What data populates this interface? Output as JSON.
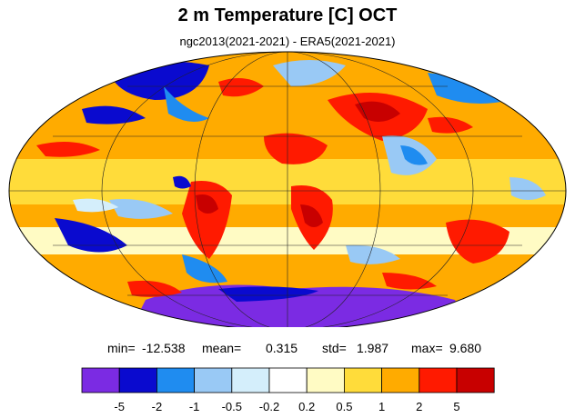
{
  "title": "2 m Temperature [C] OCT",
  "subtitle": "ngc2013(2021-2021) - ERA5(2021-2021)",
  "stats": {
    "min_label": "min=",
    "min": "-12.538",
    "mean_label": "mean=",
    "mean": "0.315",
    "std_label": "std=",
    "std": "1.987",
    "max_label": "max=",
    "max": "9.680"
  },
  "colorbar": {
    "colors": [
      "#7b2be3",
      "#0a0acf",
      "#1f8cf0",
      "#99c9f5",
      "#d4eefb",
      "#ffffff",
      "#fffbc4",
      "#ffdc3a",
      "#ffab00",
      "#ff1a00",
      "#c80000"
    ],
    "ticks": [
      "-5",
      "-2",
      "-1",
      "-0.5",
      "-0.2",
      "0.2",
      "0.5",
      "1",
      "2",
      "5"
    ]
  },
  "map": {
    "projection": "Mollweide",
    "grid": true
  }
}
